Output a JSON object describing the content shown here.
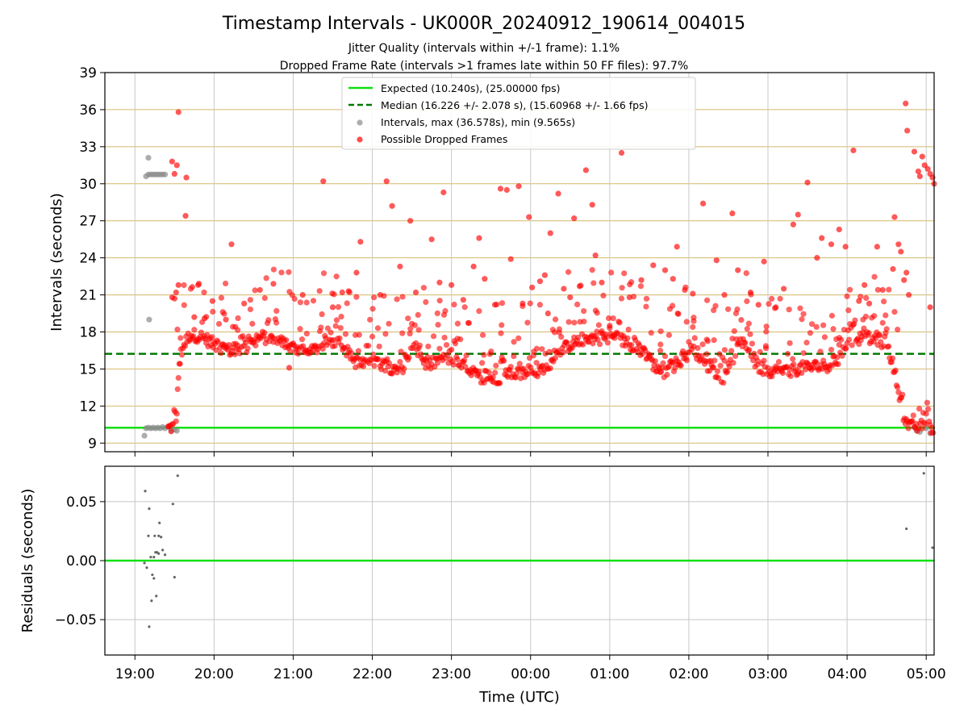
{
  "chart_data": [
    {
      "type": "scatter",
      "title": "Timestamp Intervals - UK000R_20240912_190614_004015",
      "subtitle_lines": [
        "Jitter Quality (intervals within +/-1 frame): 1.1%",
        "Dropped Frame Rate (intervals >1 frames late within 50 FF files): 97.7%"
      ],
      "ylabel": "Intervals (seconds)",
      "xlabel": "",
      "x_range_hours": [
        18.62,
        29.1
      ],
      "ylim": [
        8.3,
        39
      ],
      "y_ticks": [
        9,
        12,
        15,
        18,
        21,
        24,
        27,
        30,
        33,
        36,
        39
      ],
      "x_ticks": [
        {
          "value": 19,
          "label": "19:00"
        },
        {
          "value": 20,
          "label": "20:00"
        },
        {
          "value": 21,
          "label": "21:00"
        },
        {
          "value": 22,
          "label": "22:00"
        },
        {
          "value": 23,
          "label": "23:00"
        },
        {
          "value": 24,
          "label": "00:00"
        },
        {
          "value": 25,
          "label": "01:00"
        },
        {
          "value": 26,
          "label": "02:00"
        },
        {
          "value": 27,
          "label": "03:00"
        },
        {
          "value": 28,
          "label": "04:00"
        },
        {
          "value": 29,
          "label": "05:00"
        }
      ],
      "grid": "horizontal",
      "grid_color": "#d4b96a",
      "legend_position": "upper-center",
      "legend": [
        {
          "label": "Expected (10.240s), (25.00000 fps)",
          "marker": "solid-line",
          "color": "#10e010"
        },
        {
          "label": "Median (16.226 +/- 2.078 s), (15.60968 +/- 1.66 fps)",
          "marker": "dashed-line",
          "color": "#007a00"
        },
        {
          "label": "Intervals, max (36.578s), min (9.565s)",
          "marker": "dot",
          "color": "#8a8a8a"
        },
        {
          "label": "Possible Dropped Frames",
          "marker": "dot",
          "color": "#ff0000"
        }
      ],
      "expected_line": 10.24,
      "median_line": 16.226,
      "gray_points": [
        [
          19.12,
          9.6
        ],
        [
          19.14,
          10.2
        ],
        [
          19.17,
          10.25
        ],
        [
          19.2,
          10.2
        ],
        [
          19.23,
          10.25
        ],
        [
          19.26,
          10.2
        ],
        [
          19.29,
          10.25
        ],
        [
          19.32,
          10.2
        ],
        [
          19.35,
          10.3
        ],
        [
          19.38,
          10.2
        ],
        [
          19.42,
          10.3
        ],
        [
          19.46,
          10.0
        ],
        [
          19.5,
          10.1
        ],
        [
          19.53,
          10.0
        ],
        [
          19.14,
          30.6
        ],
        [
          19.17,
          30.75
        ],
        [
          19.2,
          30.75
        ],
        [
          19.23,
          30.75
        ],
        [
          19.26,
          30.75
        ],
        [
          19.29,
          30.75
        ],
        [
          19.32,
          30.75
        ],
        [
          19.35,
          30.75
        ],
        [
          19.38,
          30.75
        ],
        [
          19.17,
          32.1
        ],
        [
          19.18,
          19.0
        ],
        [
          28.85,
          10.3
        ],
        [
          28.88,
          10.0
        ],
        [
          28.92,
          9.9
        ],
        [
          29.0,
          10.2
        ],
        [
          29.05,
          9.8
        ]
      ],
      "red_series_trend": [
        [
          19.42,
          10.2
        ],
        [
          19.52,
          10.4
        ],
        [
          19.55,
          14.5
        ],
        [
          19.58,
          16.0
        ],
        [
          19.62,
          17.0
        ],
        [
          19.7,
          17.8
        ],
        [
          19.85,
          17.6
        ],
        [
          20.0,
          17.0
        ],
        [
          20.2,
          16.5
        ],
        [
          20.4,
          16.7
        ],
        [
          20.6,
          17.6
        ],
        [
          20.8,
          17.3
        ],
        [
          21.0,
          16.8
        ],
        [
          21.2,
          16.2
        ],
        [
          21.4,
          17.2
        ],
        [
          21.6,
          17.3
        ],
        [
          21.75,
          15.7
        ],
        [
          21.9,
          15.3
        ],
        [
          22.05,
          15.6
        ],
        [
          22.25,
          15.1
        ],
        [
          22.4,
          15.2
        ],
        [
          22.5,
          17.0
        ],
        [
          22.6,
          16.2
        ],
        [
          22.7,
          15.2
        ],
        [
          22.85,
          15.8
        ],
        [
          23.0,
          15.7
        ],
        [
          23.15,
          15.3
        ],
        [
          23.3,
          14.5
        ],
        [
          23.45,
          14.2
        ],
        [
          23.6,
          14.3
        ],
        [
          23.75,
          14.8
        ],
        [
          23.9,
          14.6
        ],
        [
          24.05,
          14.8
        ],
        [
          24.2,
          15.0
        ],
        [
          24.35,
          16.3
        ],
        [
          24.5,
          17.0
        ],
        [
          24.7,
          17.5
        ],
        [
          24.9,
          17.5
        ],
        [
          25.05,
          17.6
        ],
        [
          25.2,
          17.2
        ],
        [
          25.35,
          16.8
        ],
        [
          25.55,
          15.4
        ],
        [
          25.7,
          14.6
        ],
        [
          25.85,
          15.5
        ],
        [
          25.95,
          16.0
        ],
        [
          26.05,
          16.6
        ],
        [
          26.15,
          16.0
        ],
        [
          26.3,
          14.8
        ],
        [
          26.45,
          14.3
        ],
        [
          26.55,
          15.8
        ],
        [
          26.65,
          17.0
        ],
        [
          26.75,
          16.8
        ],
        [
          26.85,
          15.2
        ],
        [
          27.0,
          14.9
        ],
        [
          27.15,
          14.8
        ],
        [
          27.3,
          14.9
        ],
        [
          27.45,
          15.1
        ],
        [
          27.6,
          15.2
        ],
        [
          27.75,
          15.3
        ],
        [
          27.9,
          15.8
        ],
        [
          28.0,
          17.0
        ],
        [
          28.1,
          17.5
        ],
        [
          28.25,
          17.5
        ],
        [
          28.4,
          17.3
        ],
        [
          28.5,
          17.1
        ],
        [
          28.55,
          16.0
        ],
        [
          28.6,
          14.8
        ],
        [
          28.65,
          13.0
        ],
        [
          28.7,
          11.5
        ],
        [
          28.75,
          10.7
        ],
        [
          28.8,
          10.3
        ],
        [
          28.95,
          10.4
        ],
        [
          29.05,
          10.3
        ],
        [
          29.1,
          10.2
        ]
      ],
      "red_outliers": [
        [
          19.55,
          35.8
        ],
        [
          19.47,
          31.8
        ],
        [
          19.5,
          30.8
        ],
        [
          19.53,
          31.5
        ],
        [
          19.65,
          30.5
        ],
        [
          19.47,
          20.8
        ],
        [
          19.5,
          20.7
        ],
        [
          19.52,
          21.2
        ],
        [
          19.55,
          21.8
        ],
        [
          19.64,
          27.4
        ],
        [
          19.75,
          19.2
        ],
        [
          19.8,
          21.8
        ],
        [
          19.88,
          19.1
        ],
        [
          19.98,
          20.5
        ],
        [
          20.15,
          19.0
        ],
        [
          20.22,
          25.1
        ],
        [
          20.38,
          20.3
        ],
        [
          20.58,
          21.4
        ],
        [
          20.75,
          21.9
        ],
        [
          20.95,
          15.1
        ],
        [
          21.12,
          21.0
        ],
        [
          21.38,
          30.2
        ],
        [
          21.5,
          20.0
        ],
        [
          21.62,
          21.2
        ],
        [
          21.7,
          21.3
        ],
        [
          21.8,
          22.8
        ],
        [
          21.85,
          25.3
        ],
        [
          22.1,
          21.0
        ],
        [
          22.18,
          30.2
        ],
        [
          22.25,
          28.2
        ],
        [
          22.35,
          23.3
        ],
        [
          22.48,
          27.0
        ],
        [
          22.55,
          21.2
        ],
        [
          22.75,
          25.5
        ],
        [
          22.85,
          22.0
        ],
        [
          22.9,
          29.3
        ],
        [
          23.0,
          21.8
        ],
        [
          23.15,
          20.6
        ],
        [
          23.28,
          23.3
        ],
        [
          23.35,
          25.6
        ],
        [
          23.42,
          22.3
        ],
        [
          23.55,
          20.2
        ],
        [
          23.62,
          29.6
        ],
        [
          23.7,
          29.5
        ],
        [
          23.75,
          23.9
        ],
        [
          23.85,
          29.8
        ],
        [
          23.9,
          20.3
        ],
        [
          23.98,
          27.3
        ],
        [
          24.02,
          21.6
        ],
        [
          24.12,
          22.1
        ],
        [
          24.18,
          22.6
        ],
        [
          24.22,
          19.5
        ],
        [
          24.25,
          26.0
        ],
        [
          24.35,
          29.2
        ],
        [
          24.42,
          21.5
        ],
        [
          24.5,
          20.8
        ],
        [
          24.55,
          27.2
        ],
        [
          24.62,
          21.7
        ],
        [
          24.7,
          31.1
        ],
        [
          24.78,
          28.3
        ],
        [
          24.82,
          24.2
        ],
        [
          24.9,
          22.0
        ],
        [
          25.0,
          18.5
        ],
        [
          25.15,
          32.5
        ],
        [
          25.25,
          20.8
        ],
        [
          25.4,
          22.2
        ],
        [
          25.55,
          23.4
        ],
        [
          25.7,
          23.0
        ],
        [
          25.8,
          22.3
        ],
        [
          25.85,
          24.9
        ],
        [
          25.95,
          21.4
        ],
        [
          26.05,
          21.1
        ],
        [
          26.18,
          28.4
        ],
        [
          26.35,
          23.8
        ],
        [
          26.45,
          21.0
        ],
        [
          26.55,
          27.6
        ],
        [
          26.62,
          23.0
        ],
        [
          26.78,
          21.2
        ],
        [
          26.88,
          20.2
        ],
        [
          26.95,
          23.7
        ],
        [
          27.1,
          20.0
        ],
        [
          27.2,
          21.5
        ],
        [
          27.32,
          26.7
        ],
        [
          27.38,
          27.5
        ],
        [
          27.5,
          30.1
        ],
        [
          27.62,
          24.0
        ],
        [
          27.68,
          25.6
        ],
        [
          27.8,
          25.1
        ],
        [
          27.9,
          26.3
        ],
        [
          27.98,
          24.9
        ],
        [
          28.08,
          32.7
        ],
        [
          28.15,
          20.5
        ],
        [
          28.22,
          21.8
        ],
        [
          28.28,
          20.3
        ],
        [
          28.38,
          24.9
        ],
        [
          28.45,
          21.4
        ],
        [
          28.58,
          23.1
        ],
        [
          28.6,
          27.3
        ],
        [
          28.65,
          25.1
        ],
        [
          28.68,
          24.5
        ],
        [
          28.72,
          22.2
        ],
        [
          28.75,
          22.8
        ],
        [
          28.78,
          21.0
        ],
        [
          28.74,
          36.5
        ],
        [
          28.76,
          34.3
        ],
        [
          28.85,
          32.6
        ],
        [
          28.9,
          31.0
        ],
        [
          28.92,
          30.6
        ],
        [
          28.95,
          32.2
        ],
        [
          28.98,
          31.5
        ],
        [
          29.02,
          31.2
        ],
        [
          29.05,
          30.8
        ],
        [
          29.08,
          30.5
        ],
        [
          29.1,
          30.0
        ],
        [
          29.05,
          20.0
        ]
      ]
    },
    {
      "type": "scatter",
      "ylabel": "Residuals (seconds)",
      "xlabel": "Time (UTC)",
      "x_range_hours": [
        18.62,
        29.1
      ],
      "ylim": [
        -0.08,
        0.08
      ],
      "y_ticks": [
        {
          "value": 0.05,
          "label": "0.05"
        },
        {
          "value": 0.0,
          "label": "0.00"
        },
        {
          "value": -0.05,
          "label": "−0.05"
        }
      ],
      "x_ticks": [
        {
          "value": 19,
          "label": "19:00"
        },
        {
          "value": 20,
          "label": "20:00"
        },
        {
          "value": 21,
          "label": "21:00"
        },
        {
          "value": 22,
          "label": "22:00"
        },
        {
          "value": 23,
          "label": "23:00"
        },
        {
          "value": 24,
          "label": "00:00"
        },
        {
          "value": 25,
          "label": "01:00"
        },
        {
          "value": 26,
          "label": "02:00"
        },
        {
          "value": 27,
          "label": "03:00"
        },
        {
          "value": 28,
          "label": "04:00"
        },
        {
          "value": 29,
          "label": "05:00"
        }
      ],
      "grid": "both",
      "zero_line": 0.0,
      "points": [
        [
          19.13,
          0.059
        ],
        [
          19.18,
          0.044
        ],
        [
          19.17,
          0.021
        ],
        [
          19.25,
          0.021
        ],
        [
          19.3,
          0.021
        ],
        [
          19.33,
          0.02
        ],
        [
          19.31,
          0.032
        ],
        [
          19.2,
          0.003
        ],
        [
          19.12,
          -0.002
        ],
        [
          19.15,
          -0.006
        ],
        [
          19.22,
          -0.012
        ],
        [
          19.24,
          -0.015
        ],
        [
          19.28,
          0.007
        ],
        [
          19.26,
          0.007
        ],
        [
          19.3,
          0.006
        ],
        [
          19.35,
          0.009
        ],
        [
          19.38,
          0.005
        ],
        [
          19.24,
          0.003
        ],
        [
          19.27,
          -0.03
        ],
        [
          19.21,
          -0.034
        ],
        [
          19.18,
          -0.056
        ],
        [
          19.48,
          0.048
        ],
        [
          19.5,
          -0.014
        ],
        [
          19.54,
          0.072
        ],
        [
          28.75,
          0.027
        ],
        [
          28.97,
          0.074
        ],
        [
          29.08,
          0.011
        ]
      ]
    }
  ]
}
